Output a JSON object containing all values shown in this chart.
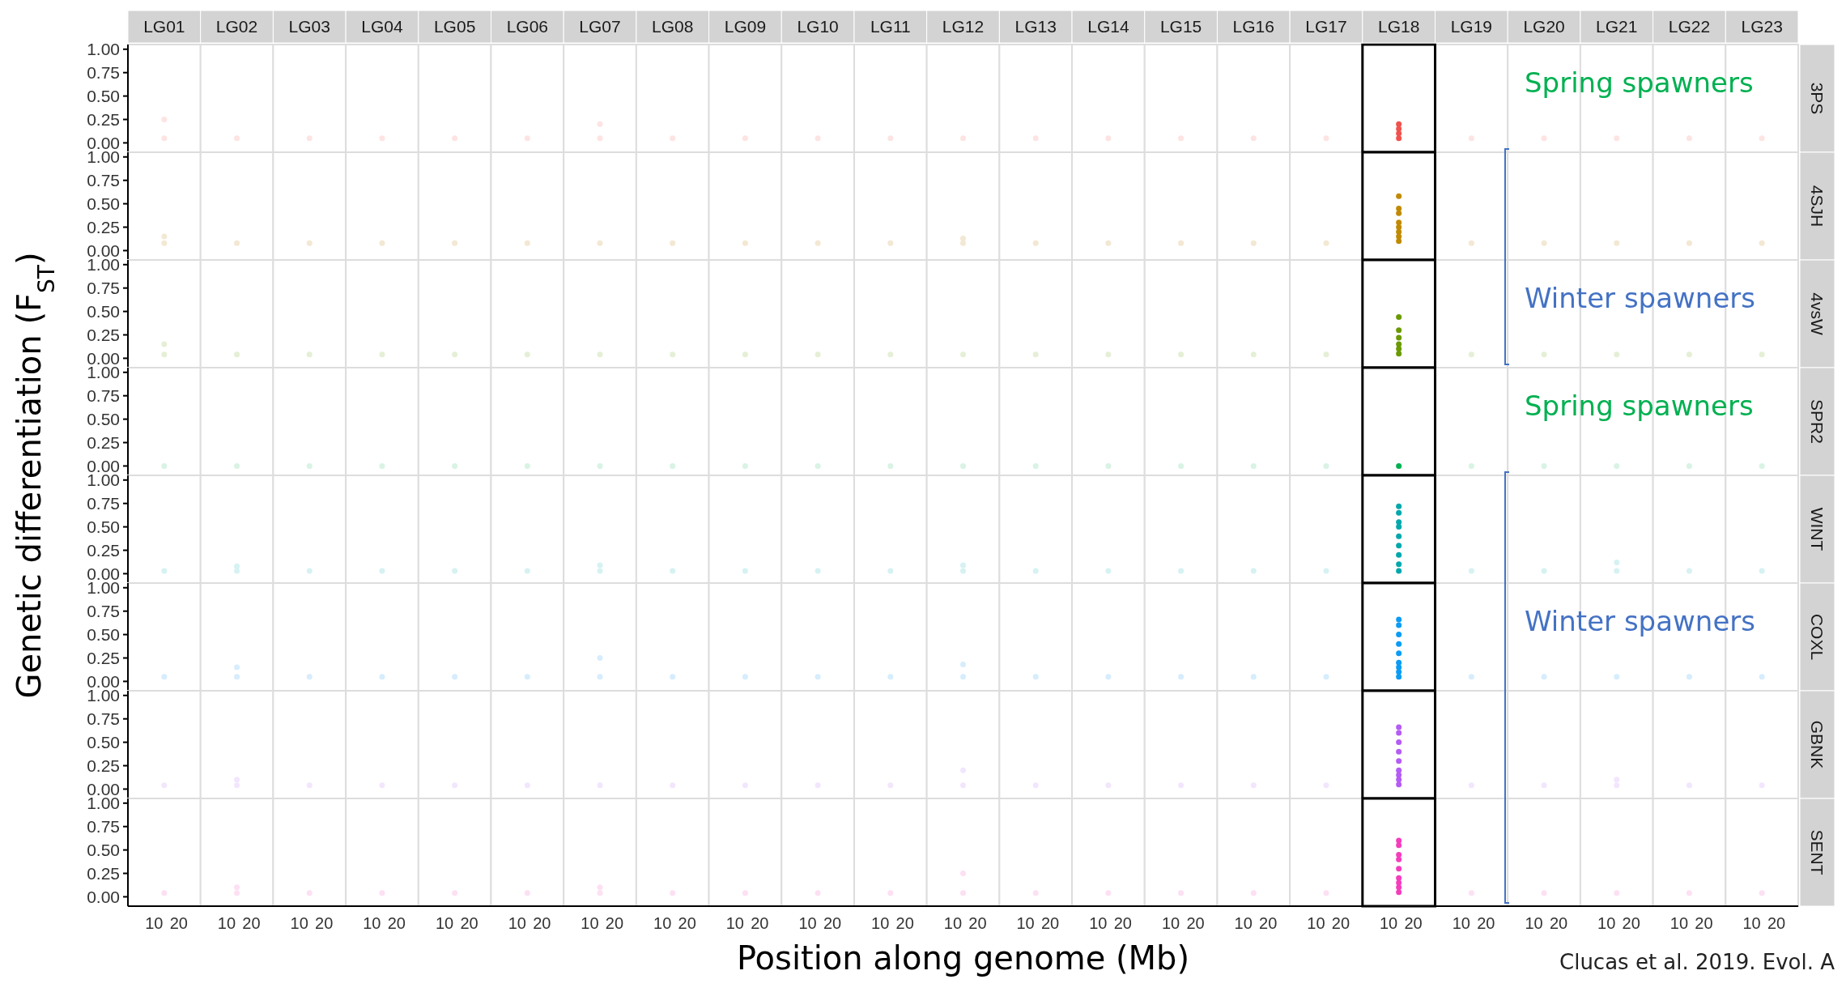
{
  "chart_data": [
    {
      "type": "scatter",
      "y2label": "3PS",
      "ylabel": "Genetic differentiation (F$_{ST}$)",
      "marker": "circle",
      "ylim": [
        -0.1,
        1.05
      ],
      "annotations": [
        "Spring spawners"
      ],
      "categories": [
        "LG01",
        "LG02",
        "LG03",
        "LG04",
        "LG05",
        "LG06",
        "LG07",
        "LG08",
        "LG09",
        "LG10",
        "LG11",
        "LG12",
        "LG13",
        "LG14",
        "LG15",
        "LG16",
        "LG17",
        "LG18",
        "LG19",
        "LG20",
        "LG21",
        "LG22",
        "LG23"
      ],
      "yticks": [
        {
          "value": 0,
          "label": "0.00"
        },
        {
          "value": 0.25,
          "label": "0.25"
        },
        {
          "value": 0.5,
          "label": "0.50"
        },
        {
          "value": 0.75,
          "label": "0.75"
        },
        {
          "value": 1,
          "label": "1.00"
        }
      ],
      "series": [
        {
          "color": "#fde4e2",
          "values": [
            0.05,
            0.05,
            0.05,
            0.05,
            0.05,
            0.05,
            0.05,
            0.05,
            0.05,
            0.05,
            0.05,
            0.05,
            0.05,
            0.05,
            0.05,
            0.05,
            0.05,
            null,
            0.05,
            0.05,
            0.05,
            0.05,
            0.05
          ]
        },
        {
          "color": "#fde4e2",
          "x": [
            "LG01",
            "LG07"
          ],
          "values": [
            0.25,
            0.2
          ]
        },
        {
          "color": "#f0524d",
          "x": [
            "LG18",
            "LG18",
            "LG18",
            "LG18"
          ],
          "values": [
            0.05,
            0.1,
            0.15,
            0.2
          ]
        }
      ]
    },
    {
      "type": "scatter",
      "y2label": "4SJH",
      "marker": "circle",
      "ylim": [
        -0.1,
        1.05
      ],
      "tick_labels": "y",
      "categories": [
        "LG01",
        "LG02",
        "LG03",
        "LG04",
        "LG05",
        "LG06",
        "LG07",
        "LG08",
        "LG09",
        "LG10",
        "LG11",
        "LG12",
        "LG13",
        "LG14",
        "LG15",
        "LG16",
        "LG17",
        "LG18",
        "LG19",
        "LG20",
        "LG21",
        "LG22",
        "LG23"
      ],
      "yticks": [
        {
          "value": 0,
          "label": "0.00"
        },
        {
          "value": 0.25,
          "label": "0.25"
        },
        {
          "value": 0.5,
          "label": "0.50"
        },
        {
          "value": 0.75,
          "label": "0.75"
        },
        {
          "value": 1,
          "label": "1.00"
        }
      ],
      "series": [
        {
          "color": "#f3e8d3",
          "values": [
            0.08,
            0.08,
            0.08,
            0.08,
            0.08,
            0.08,
            0.08,
            0.08,
            0.08,
            0.08,
            0.08,
            0.08,
            0.08,
            0.08,
            0.08,
            0.08,
            0.08,
            null,
            0.08,
            0.08,
            0.08,
            0.08,
            0.08
          ]
        },
        {
          "color": "#f3e8d3",
          "x": [
            "LG01",
            "LG12"
          ],
          "values": [
            0.15,
            0.13
          ]
        },
        {
          "color": "#c08a00",
          "x": [
            "LG18",
            "LG18",
            "LG18",
            "LG18",
            "LG18",
            "LG18",
            "LG18",
            "LG18"
          ],
          "values": [
            0.1,
            0.15,
            0.2,
            0.25,
            0.3,
            0.4,
            0.45,
            0.58
          ]
        }
      ]
    },
    {
      "type": "scatter",
      "y2label": "4vsW",
      "marker": "circle",
      "ylim": [
        -0.1,
        1.05
      ],
      "tick_labels": "y",
      "annotations": [
        "Winter spawners"
      ],
      "categories": [
        "LG01",
        "LG02",
        "LG03",
        "LG04",
        "LG05",
        "LG06",
        "LG07",
        "LG08",
        "LG09",
        "LG10",
        "LG11",
        "LG12",
        "LG13",
        "LG14",
        "LG15",
        "LG16",
        "LG17",
        "LG18",
        "LG19",
        "LG20",
        "LG21",
        "LG22",
        "LG23"
      ],
      "yticks": [
        {
          "value": 0,
          "label": "0.00"
        },
        {
          "value": 0.25,
          "label": "0.25"
        },
        {
          "value": 0.5,
          "label": "0.50"
        },
        {
          "value": 0.75,
          "label": "0.75"
        },
        {
          "value": 1,
          "label": "1.00"
        }
      ],
      "series": [
        {
          "color": "#e5efd6",
          "values": [
            0.04,
            0.04,
            0.04,
            0.04,
            0.04,
            0.04,
            0.04,
            0.04,
            0.04,
            0.04,
            0.04,
            0.04,
            0.04,
            0.04,
            0.04,
            0.04,
            0.04,
            null,
            0.04,
            0.04,
            0.04,
            0.04,
            0.04
          ]
        },
        {
          "color": "#e5efd6",
          "x": [
            "LG01"
          ],
          "values": [
            0.15
          ]
        },
        {
          "color": "#6a9a00",
          "x": [
            "LG18",
            "LG18",
            "LG18",
            "LG18",
            "LG18",
            "LG18"
          ],
          "values": [
            0.05,
            0.1,
            0.15,
            0.22,
            0.3,
            0.44
          ]
        }
      ]
    },
    {
      "type": "scatter",
      "y2label": "SPR2",
      "marker": "circle",
      "ylim": [
        -0.1,
        1.05
      ],
      "tick_labels": "y",
      "annotations": [
        "Spring spawners"
      ],
      "categories": [
        "LG01",
        "LG02",
        "LG03",
        "LG04",
        "LG05",
        "LG06",
        "LG07",
        "LG08",
        "LG09",
        "LG10",
        "LG11",
        "LG12",
        "LG13",
        "LG14",
        "LG15",
        "LG16",
        "LG17",
        "LG18",
        "LG19",
        "LG20",
        "LG21",
        "LG22",
        "LG23"
      ],
      "yticks": [
        {
          "value": 0,
          "label": "0.00"
        },
        {
          "value": 0.25,
          "label": "0.25"
        },
        {
          "value": 0.5,
          "label": "0.50"
        },
        {
          "value": 0.75,
          "label": "0.75"
        },
        {
          "value": 1,
          "label": "1.00"
        }
      ],
      "series": [
        {
          "color": "#d9f3e4",
          "values": [
            0,
            0,
            0,
            0,
            0,
            0,
            0,
            0,
            0,
            0,
            0,
            0,
            0,
            0,
            0,
            0,
            0,
            null,
            0,
            0,
            0,
            0,
            0
          ]
        },
        {
          "color": "#00b050",
          "x": [
            "LG18"
          ],
          "values": [
            0
          ]
        }
      ]
    },
    {
      "type": "scatter",
      "y2label": "WINT",
      "marker": "circle",
      "ylim": [
        -0.1,
        1.05
      ],
      "tick_labels": "y",
      "categories": [
        "LG01",
        "LG02",
        "LG03",
        "LG04",
        "LG05",
        "LG06",
        "LG07",
        "LG08",
        "LG09",
        "LG10",
        "LG11",
        "LG12",
        "LG13",
        "LG14",
        "LG15",
        "LG16",
        "LG17",
        "LG18",
        "LG19",
        "LG20",
        "LG21",
        "LG22",
        "LG23"
      ],
      "yticks": [
        {
          "value": 0,
          "label": "0.00"
        },
        {
          "value": 0.25,
          "label": "0.25"
        },
        {
          "value": 0.5,
          "label": "0.50"
        },
        {
          "value": 0.75,
          "label": "0.75"
        },
        {
          "value": 1,
          "label": "1.00"
        }
      ],
      "series": [
        {
          "color": "#d6f2f2",
          "values": [
            0.03,
            0.03,
            0.03,
            0.03,
            0.03,
            0.03,
            0.03,
            0.03,
            0.03,
            0.03,
            0.03,
            0.03,
            0.03,
            0.03,
            0.03,
            0.03,
            0.03,
            null,
            0.03,
            0.03,
            0.03,
            0.03,
            0.03
          ]
        },
        {
          "color": "#d6f2f2",
          "x": [
            "LG02",
            "LG07",
            "LG12",
            "LG21"
          ],
          "values": [
            0.08,
            0.09,
            0.09,
            0.12
          ]
        },
        {
          "color": "#00a8ac",
          "x": [
            "LG18",
            "LG18",
            "LG18",
            "LG18",
            "LG18",
            "LG18",
            "LG18",
            "LG18",
            "LG18"
          ],
          "values": [
            0.03,
            0.1,
            0.2,
            0.3,
            0.4,
            0.5,
            0.55,
            0.65,
            0.72
          ]
        }
      ]
    },
    {
      "type": "scatter",
      "y2label": "COXL",
      "marker": "circle",
      "ylim": [
        -0.1,
        1.05
      ],
      "tick_labels": "y",
      "annotations": [
        "Winter spawners"
      ],
      "categories": [
        "LG01",
        "LG02",
        "LG03",
        "LG04",
        "LG05",
        "LG06",
        "LG07",
        "LG08",
        "LG09",
        "LG10",
        "LG11",
        "LG12",
        "LG13",
        "LG14",
        "LG15",
        "LG16",
        "LG17",
        "LG18",
        "LG19",
        "LG20",
        "LG21",
        "LG22",
        "LG23"
      ],
      "yticks": [
        {
          "value": 0,
          "label": "0.00"
        },
        {
          "value": 0.25,
          "label": "0.25"
        },
        {
          "value": 0.5,
          "label": "0.50"
        },
        {
          "value": 0.75,
          "label": "0.75"
        },
        {
          "value": 1,
          "label": "1.00"
        }
      ],
      "series": [
        {
          "color": "#d6edfd",
          "values": [
            0.05,
            0.05,
            0.05,
            0.05,
            0.05,
            0.05,
            0.05,
            0.05,
            0.05,
            0.05,
            0.05,
            0.05,
            0.05,
            0.05,
            0.05,
            0.05,
            0.05,
            null,
            0.05,
            0.05,
            0.05,
            0.05,
            0.05
          ]
        },
        {
          "color": "#d6edfd",
          "x": [
            "LG02",
            "LG07",
            "LG12"
          ],
          "values": [
            0.15,
            0.25,
            0.18
          ]
        },
        {
          "color": "#0a9cf5",
          "x": [
            "LG18",
            "LG18",
            "LG18",
            "LG18",
            "LG18",
            "LG18",
            "LG18",
            "LG18",
            "LG18"
          ],
          "values": [
            0.05,
            0.1,
            0.15,
            0.2,
            0.3,
            0.4,
            0.5,
            0.6,
            0.66
          ]
        }
      ]
    },
    {
      "type": "scatter",
      "y2label": "GBNK",
      "marker": "circle",
      "ylim": [
        -0.1,
        1.05
      ],
      "tick_labels": "y",
      "categories": [
        "LG01",
        "LG02",
        "LG03",
        "LG04",
        "LG05",
        "LG06",
        "LG07",
        "LG08",
        "LG09",
        "LG10",
        "LG11",
        "LG12",
        "LG13",
        "LG14",
        "LG15",
        "LG16",
        "LG17",
        "LG18",
        "LG19",
        "LG20",
        "LG21",
        "LG22",
        "LG23"
      ],
      "yticks": [
        {
          "value": 0,
          "label": "0.00"
        },
        {
          "value": 0.25,
          "label": "0.25"
        },
        {
          "value": 0.5,
          "label": "0.50"
        },
        {
          "value": 0.75,
          "label": "0.75"
        },
        {
          "value": 1,
          "label": "1.00"
        }
      ],
      "series": [
        {
          "color": "#f2e6fe",
          "values": [
            0.04,
            0.04,
            0.04,
            0.04,
            0.04,
            0.04,
            0.04,
            0.04,
            0.04,
            0.04,
            0.04,
            0.04,
            0.04,
            0.04,
            0.04,
            0.04,
            0.04,
            null,
            0.04,
            0.04,
            0.04,
            0.04,
            0.04
          ]
        },
        {
          "color": "#f2e6fe",
          "x": [
            "LG02",
            "LG12",
            "LG21"
          ],
          "values": [
            0.1,
            0.2,
            0.1
          ]
        },
        {
          "color": "#b45cf5",
          "x": [
            "LG18",
            "LG18",
            "LG18",
            "LG18",
            "LG18",
            "LG18",
            "LG18",
            "LG18",
            "LG18"
          ],
          "values": [
            0.05,
            0.1,
            0.15,
            0.2,
            0.3,
            0.4,
            0.5,
            0.6,
            0.66
          ]
        }
      ]
    },
    {
      "type": "scatter",
      "y2label": "SENT",
      "xlabel": "Position along genome (Mb)",
      "marker": "circle",
      "ylim": [
        -0.1,
        1.05
      ],
      "tick_labels": "y",
      "annotations": [
        "10",
        "20",
        "10",
        "20",
        "10",
        "20",
        "10",
        "20",
        "10",
        "20",
        "10",
        "20",
        "10",
        "20",
        "10",
        "20",
        "10",
        "20",
        "10",
        "20",
        "10",
        "20",
        "10",
        "20",
        "10",
        "20",
        "10",
        "20",
        "10",
        "20",
        "10",
        "20",
        "10",
        "20",
        "10",
        "20",
        "10",
        "20",
        "10",
        "20",
        "10",
        "20",
        "10",
        "20",
        "10",
        "20",
        "Clucas et al. 2019. Evol. A"
      ],
      "categories": [
        "LG01",
        "LG02",
        "LG03",
        "LG04",
        "LG05",
        "LG06",
        "LG07",
        "LG08",
        "LG09",
        "LG10",
        "LG11",
        "LG12",
        "LG13",
        "LG14",
        "LG15",
        "LG16",
        "LG17",
        "LG18",
        "LG19",
        "LG20",
        "LG21",
        "LG22",
        "LG23"
      ],
      "yticks": [
        {
          "value": 0,
          "label": "0.00"
        },
        {
          "value": 0.25,
          "label": "0.25"
        },
        {
          "value": 0.5,
          "label": "0.50"
        },
        {
          "value": 0.75,
          "label": "0.75"
        },
        {
          "value": 1,
          "label": "1.00"
        }
      ],
      "series": [
        {
          "color": "#fde0f3",
          "values": [
            0.04,
            0.04,
            0.04,
            0.04,
            0.04,
            0.04,
            0.04,
            0.04,
            0.04,
            0.04,
            0.04,
            0.04,
            0.04,
            0.04,
            0.04,
            0.04,
            0.04,
            null,
            0.04,
            0.04,
            0.04,
            0.04,
            0.04
          ]
        },
        {
          "color": "#fde0f3",
          "x": [
            "LG02",
            "LG07",
            "LG12"
          ],
          "values": [
            0.1,
            0.1,
            0.25
          ]
        },
        {
          "color": "#f53dbc",
          "x": [
            "LG18",
            "LG18",
            "LG18",
            "LG18",
            "LG18",
            "LG18",
            "LG18",
            "LG18",
            "LG18"
          ],
          "values": [
            0.05,
            0.1,
            0.15,
            0.2,
            0.3,
            0.4,
            0.45,
            0.55,
            0.6
          ]
        }
      ]
    }
  ]
}
